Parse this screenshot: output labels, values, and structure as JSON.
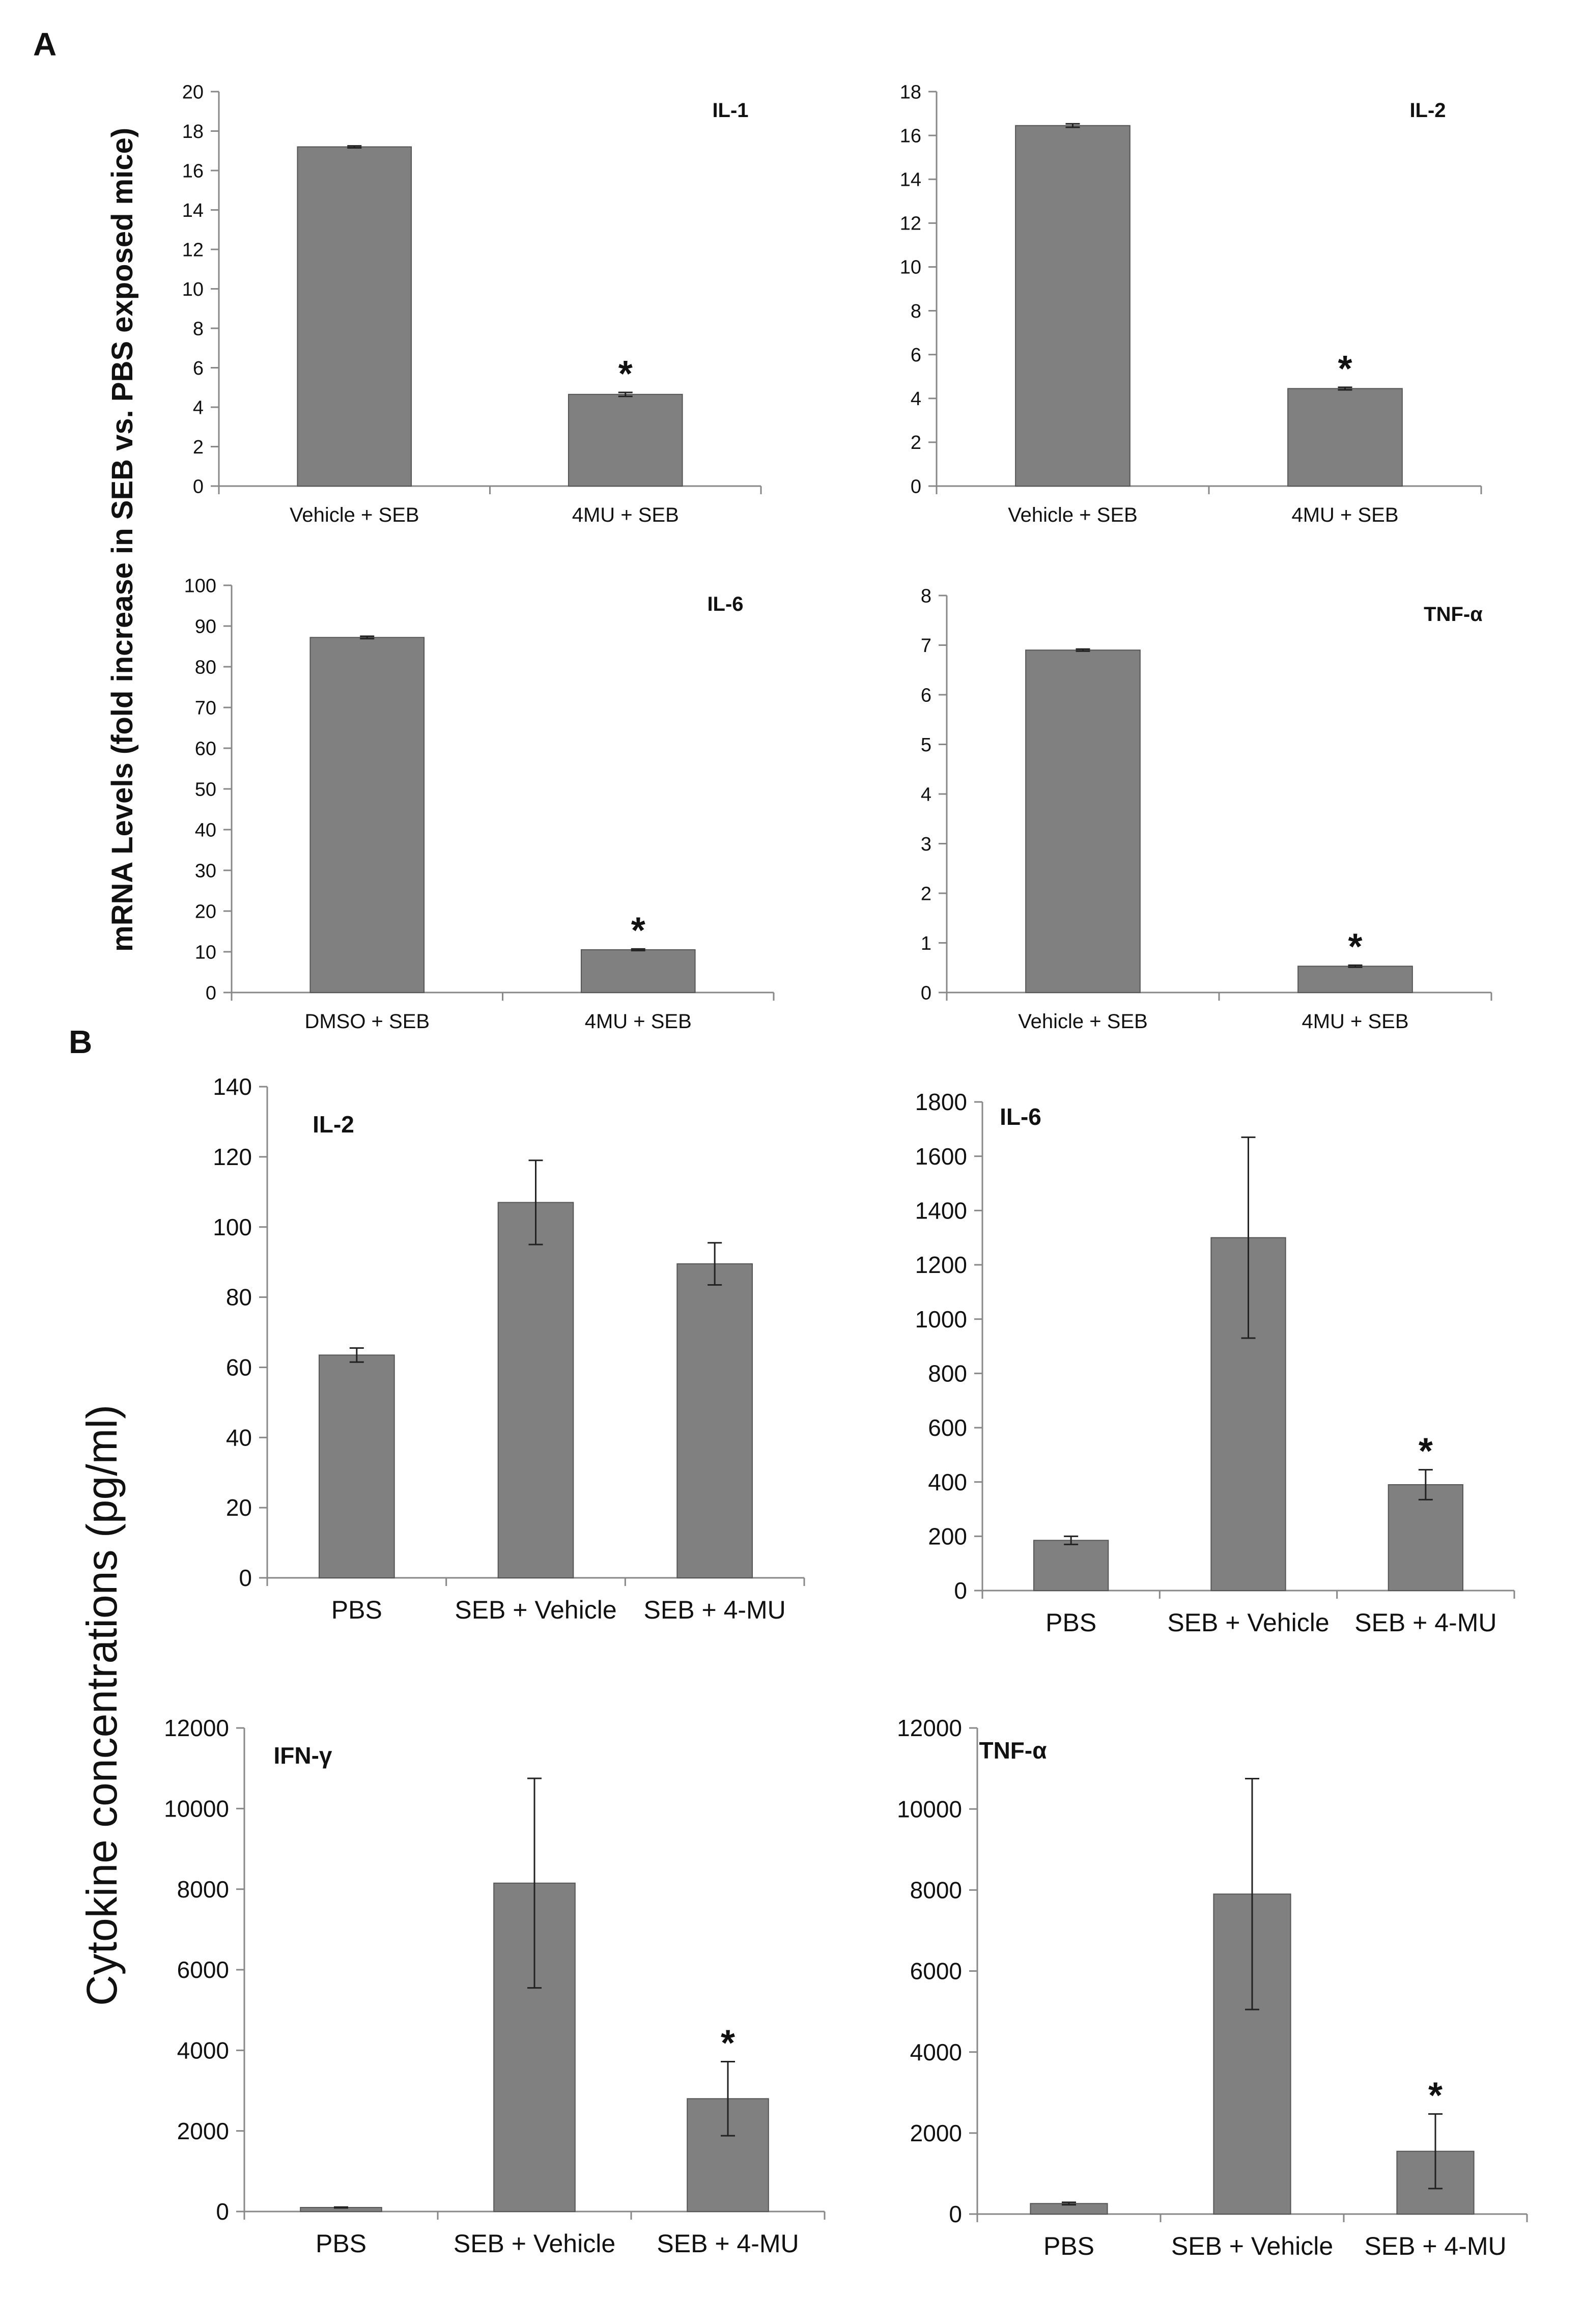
{
  "figure": {
    "panel_a_letter": "A",
    "panel_b_letter": "B",
    "panel_a_ylabel": "mRNA Levels (fold increase in SEB vs. PBS exposed mice)",
    "panel_b_ylabel": "Cytokine concentrations (pg/ml)",
    "bar_color": "#808080",
    "significance_marker": "*"
  },
  "chart_data": [
    {
      "id": "A-IL1",
      "type": "bar",
      "title": "IL-1",
      "categories": [
        "Vehicle + SEB",
        "4MU + SEB"
      ],
      "values": [
        17.2,
        4.65
      ],
      "errors": [
        0.05,
        0.1
      ],
      "significant": [
        false,
        true
      ],
      "ylim": [
        0,
        20
      ],
      "yticks": [
        0,
        2,
        4,
        6,
        8,
        10,
        12,
        14,
        16,
        18,
        20
      ],
      "xlabel": "",
      "ylabel": "mRNA Levels (fold increase in SEB vs. PBS exposed mice)"
    },
    {
      "id": "A-IL2",
      "type": "bar",
      "title": "IL-2",
      "categories": [
        "Vehicle + SEB",
        "4MU + SEB"
      ],
      "values": [
        16.45,
        4.45
      ],
      "errors": [
        0.08,
        0.06
      ],
      "significant": [
        false,
        true
      ],
      "ylim": [
        0,
        18
      ],
      "yticks": [
        0,
        2,
        4,
        6,
        8,
        10,
        12,
        14,
        16,
        18
      ],
      "xlabel": "",
      "ylabel": ""
    },
    {
      "id": "A-IL6",
      "type": "bar",
      "title": "IL-6",
      "categories": [
        "DMSO + SEB",
        "4MU + SEB"
      ],
      "values": [
        87.2,
        10.5
      ],
      "errors": [
        0.3,
        0.2
      ],
      "significant": [
        false,
        true
      ],
      "ylim": [
        0,
        100
      ],
      "yticks": [
        0,
        10,
        20,
        30,
        40,
        50,
        60,
        70,
        80,
        90,
        100
      ],
      "xlabel": "",
      "ylabel": ""
    },
    {
      "id": "A-TNFa",
      "type": "bar",
      "title": "TNF-α",
      "categories": [
        "Vehicle + SEB",
        "4MU + SEB"
      ],
      "values": [
        6.9,
        0.53
      ],
      "errors": [
        0.02,
        0.02
      ],
      "significant": [
        false,
        true
      ],
      "ylim": [
        0,
        8
      ],
      "yticks": [
        0,
        1,
        2,
        3,
        4,
        5,
        6,
        7,
        8
      ],
      "xlabel": "",
      "ylabel": ""
    },
    {
      "id": "B-IL2",
      "type": "bar",
      "title": "IL-2",
      "categories": [
        "PBS",
        "SEB + Vehicle",
        "SEB + 4-MU"
      ],
      "values": [
        63.5,
        107,
        89.5
      ],
      "errors": [
        2,
        12,
        6
      ],
      "significant": [
        false,
        false,
        false
      ],
      "ylim": [
        0,
        140
      ],
      "yticks": [
        0,
        20,
        40,
        60,
        80,
        100,
        120,
        140
      ],
      "xlabel": "",
      "ylabel": "Cytokine concentrations (pg/ml)"
    },
    {
      "id": "B-IL6",
      "type": "bar",
      "title": "IL-6",
      "categories": [
        "PBS",
        "SEB + Vehicle",
        "SEB + 4-MU"
      ],
      "values": [
        185,
        1300,
        390
      ],
      "errors": [
        15,
        370,
        55
      ],
      "significant": [
        false,
        false,
        true
      ],
      "ylim": [
        0,
        1800
      ],
      "yticks": [
        0,
        200,
        400,
        600,
        800,
        1000,
        1200,
        1400,
        1600,
        1800
      ],
      "xlabel": "",
      "ylabel": ""
    },
    {
      "id": "B-IFNg",
      "type": "bar",
      "title": "IFN-γ",
      "categories": [
        "PBS",
        "SEB + Vehicle",
        "SEB + 4-MU"
      ],
      "values": [
        100,
        8150,
        2800
      ],
      "errors": [
        10,
        2600,
        920
      ],
      "significant": [
        false,
        false,
        true
      ],
      "ylim": [
        0,
        12000
      ],
      "yticks": [
        0,
        2000,
        4000,
        6000,
        8000,
        10000,
        12000
      ],
      "xlabel": "",
      "ylabel": ""
    },
    {
      "id": "B-TNFa",
      "type": "bar",
      "title": "TNF-α",
      "categories": [
        "PBS",
        "SEB + Vehicle",
        "SEB + 4-MU"
      ],
      "values": [
        260,
        7900,
        1550
      ],
      "errors": [
        30,
        2850,
        920
      ],
      "significant": [
        false,
        false,
        true
      ],
      "ylim": [
        0,
        12000
      ],
      "yticks": [
        0,
        2000,
        4000,
        6000,
        8000,
        10000,
        12000
      ],
      "xlabel": "",
      "ylabel": ""
    }
  ]
}
